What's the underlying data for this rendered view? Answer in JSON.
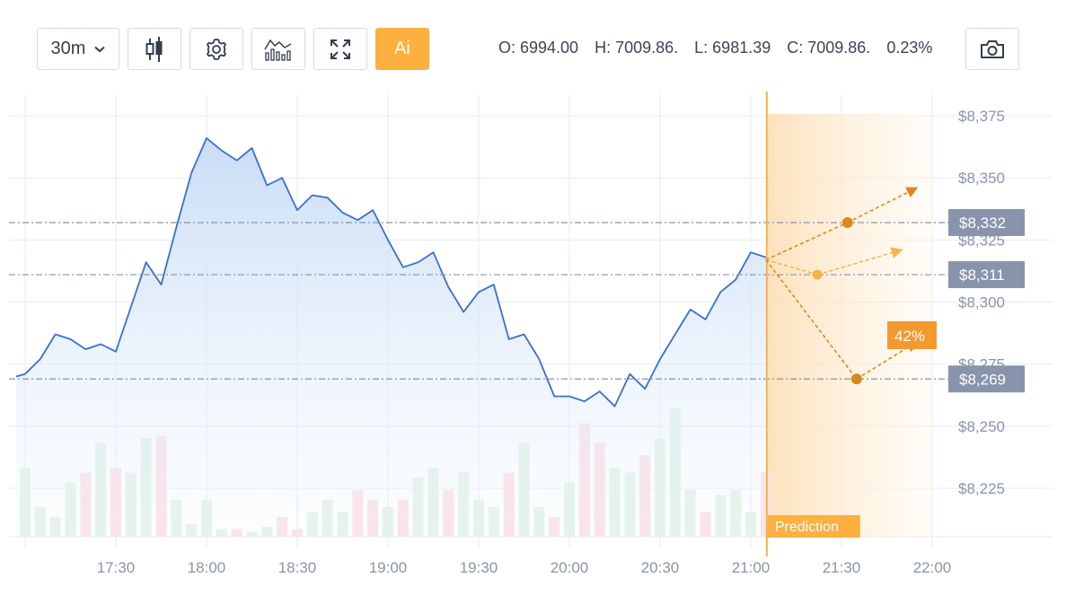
{
  "toolbar": {
    "interval": "30m",
    "ai_label": "Ai",
    "icons": [
      "candlestick-icon",
      "gear-icon",
      "indicator-icon",
      "fullscreen-icon"
    ],
    "camera_icon": "camera-icon"
  },
  "ohlc": {
    "open": "O: 6994.00",
    "high": "H: 7009.86.",
    "low": "L: 6981.39",
    "close": "C: 7009.86.",
    "change": "0.23%"
  },
  "colors": {
    "line": "#3a6fcf",
    "area_top": "#cfe0f7",
    "accent": "#fbb040",
    "prediction_dark": "#d9891a",
    "prediction_light": "#f7b347",
    "volume_up": "#e3f3e6",
    "volume_down": "#fde0e5",
    "level_box": "#8794ab"
  },
  "chart_data": {
    "type": "line",
    "x_ticks": [
      "17:30",
      "18:00",
      "18:30",
      "19:00",
      "19:30",
      "20:00",
      "20:30",
      "21:00",
      "21:30",
      "22:00"
    ],
    "y_ticks": [
      "$8,375",
      "$8,350",
      "$8,325",
      "$8,300",
      "$8,275",
      "$8,250",
      "$8,225"
    ],
    "ylim": [
      8204,
      8377
    ],
    "xlim": [
      "17:00",
      "22:00"
    ],
    "price": {
      "t": [
        "16:58",
        "17:00",
        "17:05",
        "17:10",
        "17:15",
        "17:20",
        "17:25",
        "17:30",
        "17:35",
        "17:40",
        "17:45",
        "17:50",
        "17:55",
        "18:00",
        "18:05",
        "18:10",
        "18:15",
        "18:20",
        "18:25",
        "18:30",
        "18:35",
        "18:40",
        "18:45",
        "18:50",
        "18:55",
        "19:00",
        "19:05",
        "19:10",
        "19:15",
        "19:20",
        "19:25",
        "19:30",
        "19:35",
        "19:40",
        "19:45",
        "19:50",
        "19:55",
        "20:00",
        "20:05",
        "20:10",
        "20:15",
        "20:20",
        "20:25",
        "20:30",
        "20:35",
        "20:40",
        "20:45",
        "20:50",
        "20:55",
        "21:00",
        "21:05"
      ],
      "v": [
        8270,
        8271,
        8277,
        8287,
        8285,
        8281,
        8283,
        8280,
        8298,
        8316,
        8307,
        8330,
        8352,
        8366,
        8361,
        8357,
        8362,
        8347,
        8350,
        8337,
        8343,
        8342,
        8336,
        8333,
        8337,
        8325,
        8314,
        8316,
        8320,
        8306,
        8296,
        8304,
        8307,
        8285,
        8287,
        8277,
        8262,
        8262,
        8260,
        8264,
        8258,
        8271,
        8265,
        8277,
        8287,
        8297,
        8293,
        8304,
        8309,
        8320,
        8318
      ]
    },
    "volume": {
      "t": [
        "17:00",
        "17:05",
        "17:10",
        "17:15",
        "17:20",
        "17:25",
        "17:30",
        "17:35",
        "17:40",
        "17:45",
        "17:50",
        "17:55",
        "18:00",
        "18:05",
        "18:10",
        "18:15",
        "18:20",
        "18:25",
        "18:30",
        "18:35",
        "18:40",
        "18:45",
        "18:50",
        "18:55",
        "19:00",
        "19:05",
        "19:10",
        "19:15",
        "19:20",
        "19:25",
        "19:30",
        "19:35",
        "19:40",
        "19:45",
        "19:50",
        "19:55",
        "20:00",
        "20:05",
        "20:10",
        "20:15",
        "20:20",
        "20:25",
        "20:30",
        "20:35",
        "20:40",
        "20:45",
        "20:50",
        "20:55",
        "21:00",
        "21:05"
      ],
      "v": [
        28,
        12,
        8,
        22,
        26,
        38,
        28,
        26,
        40,
        41,
        15,
        5,
        15,
        3,
        3,
        2,
        4,
        8,
        3,
        10,
        15,
        10,
        19,
        15,
        12,
        15,
        24,
        28,
        19,
        26,
        15,
        12,
        26,
        38,
        12,
        8,
        22,
        46,
        38,
        28,
        26,
        33,
        40,
        52,
        19,
        10,
        17,
        19,
        10,
        26
      ],
      "dir": [
        "u",
        "u",
        "u",
        "u",
        "d",
        "u",
        "d",
        "u",
        "u",
        "d",
        "u",
        "u",
        "u",
        "u",
        "d",
        "u",
        "u",
        "d",
        "d",
        "u",
        "u",
        "u",
        "d",
        "d",
        "u",
        "d",
        "u",
        "u",
        "d",
        "u",
        "u",
        "u",
        "d",
        "u",
        "u",
        "d",
        "u",
        "d",
        "d",
        "u",
        "u",
        "d",
        "u",
        "u",
        "u",
        "d",
        "u",
        "u",
        "u",
        "d"
      ]
    },
    "levels": [
      {
        "label": "$8,332",
        "value": 8332
      },
      {
        "label": "$8,311",
        "value": 8311
      },
      {
        "label": "$8,269",
        "value": 8269
      }
    ],
    "prediction": {
      "label": "Prediction",
      "start": "21:05",
      "end": "22:00",
      "origin": {
        "t": "21:05",
        "v": 8317
      },
      "paths": [
        {
          "points": [
            {
              "t": "21:32",
              "v": 8332
            },
            {
              "t": "21:55",
              "v": 8346
            }
          ],
          "tone": "dark"
        },
        {
          "points": [
            {
              "t": "21:22",
              "v": 8311
            },
            {
              "t": "21:50",
              "v": 8321
            }
          ],
          "tone": "light"
        },
        {
          "points": [
            {
              "t": "21:35",
              "v": 8269
            },
            {
              "t": "21:55",
              "v": 8284
            }
          ],
          "tone": "dark"
        }
      ],
      "probability": "42%"
    }
  }
}
